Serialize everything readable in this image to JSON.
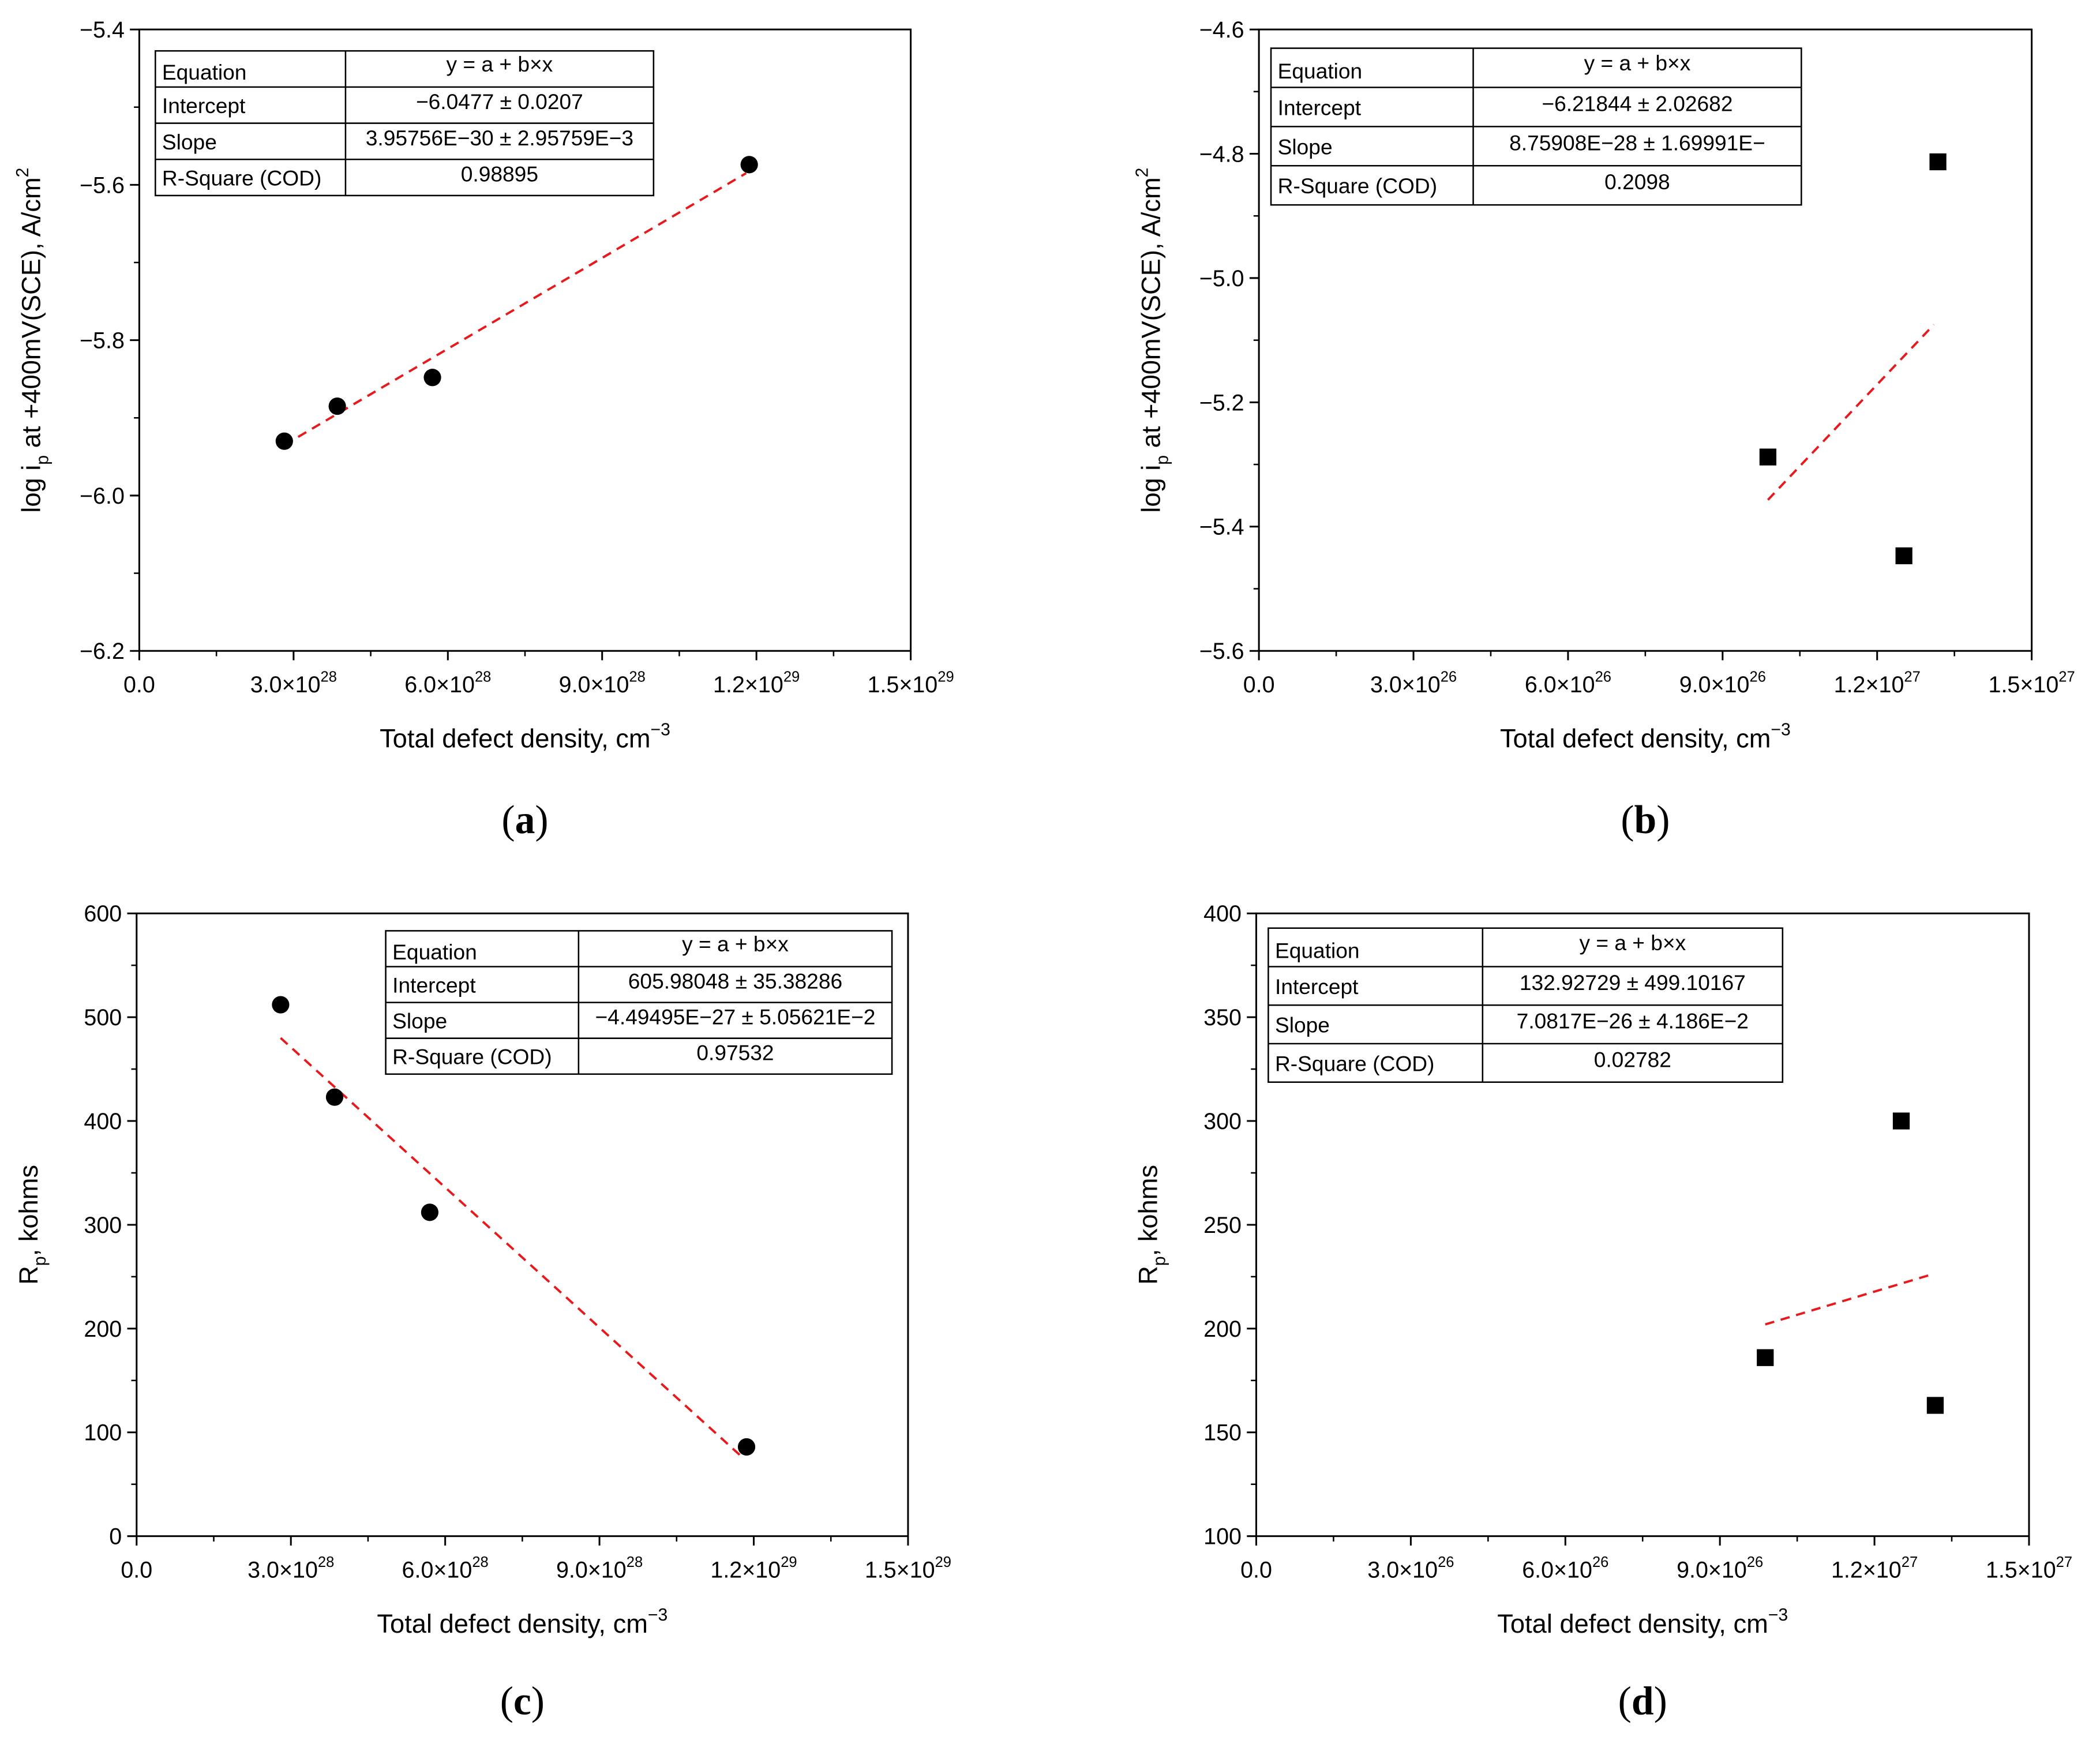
{
  "chart_data": [
    {
      "id": "a",
      "type": "scatter",
      "marker": "circle",
      "panel_label": "a",
      "xlabel": "Total defect density, cm",
      "xlabel_sup": "−3",
      "ylabel": "log i",
      "ylabel_sub": "p",
      "ylabel_mid": " at +400mV(SCE), A/cm",
      "ylabel_sup": "2",
      "xlim": [
        0,
        1.5e+29
      ],
      "ylim": [
        -6.2,
        -5.4
      ],
      "x_ticks": [
        {
          "value": 0,
          "label": "0.0",
          "sup": ""
        },
        {
          "value": 3e+28,
          "label": "3.0×10",
          "sup": "28"
        },
        {
          "value": 6e+28,
          "label": "6.0×10",
          "sup": "28"
        },
        {
          "value": 9e+28,
          "label": "9.0×10",
          "sup": "28"
        },
        {
          "value": 1.2e+29,
          "label": "1.2×10",
          "sup": "29"
        },
        {
          "value": 1.5e+29,
          "label": "1.5×10",
          "sup": "29"
        }
      ],
      "y_ticks": [
        {
          "value": -6.2,
          "label": "−6.2"
        },
        {
          "value": -6.0,
          "label": "−6.0"
        },
        {
          "value": -5.8,
          "label": "−5.8"
        },
        {
          "value": -5.6,
          "label": "−5.6"
        },
        {
          "value": -5.4,
          "label": "−5.4"
        }
      ],
      "points": [
        {
          "x": 2.82e+28,
          "y": -5.93
        },
        {
          "x": 3.85e+28,
          "y": -5.885
        },
        {
          "x": 5.7e+28,
          "y": -5.848
        },
        {
          "x": 1.186e+29,
          "y": -5.574
        }
      ],
      "fit": {
        "x0": 2.82e+28,
        "y0": -5.935,
        "x1": 1.18e+29,
        "y1": -5.585
      },
      "stats_position": "top-left",
      "stats": {
        "header": [
          "Equation",
          "y = a + b×x"
        ],
        "rows": [
          [
            "Intercept",
            "−6.0477 ± 0.0207"
          ],
          [
            "Slope",
            "3.95756E−30 ± 2.95759E−3"
          ],
          [
            "R-Square (COD)",
            "0.98895"
          ]
        ]
      }
    },
    {
      "id": "b",
      "type": "scatter",
      "marker": "square",
      "panel_label": "b",
      "xlabel": "Total defect density, cm",
      "xlabel_sup": "−3",
      "ylabel": "log i",
      "ylabel_sub": "p",
      "ylabel_mid": " at +400mV(SCE), A/cm",
      "ylabel_sup": "2",
      "xlim": [
        0,
        1.5e+27
      ],
      "ylim": [
        -5.6,
        -4.6
      ],
      "x_ticks": [
        {
          "value": 0,
          "label": "0.0",
          "sup": ""
        },
        {
          "value": 3e+26,
          "label": "3.0×10",
          "sup": "26"
        },
        {
          "value": 6e+26,
          "label": "6.0×10",
          "sup": "26"
        },
        {
          "value": 9e+26,
          "label": "9.0×10",
          "sup": "26"
        },
        {
          "value": 1.2e+27,
          "label": "1.2×10",
          "sup": "27"
        },
        {
          "value": 1.5e+27,
          "label": "1.5×10",
          "sup": "27"
        }
      ],
      "y_ticks": [
        {
          "value": -5.6,
          "label": "−5.6"
        },
        {
          "value": -5.4,
          "label": "−5.4"
        },
        {
          "value": -5.2,
          "label": "−5.2"
        },
        {
          "value": -5.0,
          "label": "−5.0"
        },
        {
          "value": -4.8,
          "label": "−4.8"
        },
        {
          "value": -4.6,
          "label": "−4.6"
        }
      ],
      "points": [
        {
          "x": 9.88e+26,
          "y": -5.288
        },
        {
          "x": 1.252e+27,
          "y": -5.447
        },
        {
          "x": 1.318e+27,
          "y": -4.813
        }
      ],
      "fit": {
        "x0": 9.88e+26,
        "y0": -5.357,
        "x1": 1.31e+27,
        "y1": -5.075
      },
      "stats_position": "top-left",
      "stats": {
        "header": [
          "Equation",
          "y = a + b×x"
        ],
        "rows": [
          [
            "Intercept",
            "−6.21844 ± 2.02682"
          ],
          [
            "Slope",
            "8.75908E−28 ± 1.69991E−"
          ],
          [
            "R-Square (COD)",
            "0.2098"
          ]
        ]
      }
    },
    {
      "id": "c",
      "type": "scatter",
      "marker": "circle",
      "panel_label": "c",
      "xlabel": "Total defect density, cm",
      "xlabel_sup": "−3",
      "ylabel": "R",
      "ylabel_sub": "p",
      "ylabel_mid": ", kohms",
      "ylabel_sup": "",
      "xlim": [
        0,
        1.5e+29
      ],
      "ylim": [
        0,
        600
      ],
      "x_ticks": [
        {
          "value": 0,
          "label": "0.0",
          "sup": ""
        },
        {
          "value": 3e+28,
          "label": "3.0×10",
          "sup": "28"
        },
        {
          "value": 6e+28,
          "label": "6.0×10",
          "sup": "28"
        },
        {
          "value": 9e+28,
          "label": "9.0×10",
          "sup": "28"
        },
        {
          "value": 1.2e+29,
          "label": "1.2×10",
          "sup": "29"
        },
        {
          "value": 1.5e+29,
          "label": "1.5×10",
          "sup": "29"
        }
      ],
      "y_ticks": [
        {
          "value": 0,
          "label": "0"
        },
        {
          "value": 100,
          "label": "100"
        },
        {
          "value": 200,
          "label": "200"
        },
        {
          "value": 300,
          "label": "300"
        },
        {
          "value": 400,
          "label": "400"
        },
        {
          "value": 500,
          "label": "500"
        },
        {
          "value": 600,
          "label": "600"
        }
      ],
      "points": [
        {
          "x": 2.8e+28,
          "y": 512
        },
        {
          "x": 3.85e+28,
          "y": 423
        },
        {
          "x": 5.7e+28,
          "y": 312
        },
        {
          "x": 1.186e+29,
          "y": 86
        }
      ],
      "fit": {
        "x0": 2.8e+28,
        "y0": 480,
        "x1": 1.18e+29,
        "y1": 75
      },
      "stats_position": "top-right",
      "stats": {
        "header": [
          "Equation",
          "y = a + b×x"
        ],
        "rows": [
          [
            "Intercept",
            "605.98048 ± 35.38286"
          ],
          [
            "Slope",
            "−4.49495E−27 ± 5.05621E−2"
          ],
          [
            "R-Square (COD)",
            "0.97532"
          ]
        ]
      }
    },
    {
      "id": "d",
      "type": "scatter",
      "marker": "square",
      "panel_label": "d",
      "xlabel": "Total defect density, cm",
      "xlabel_sup": "−3",
      "ylabel": "R",
      "ylabel_sub": "p",
      "ylabel_mid": ", kohms",
      "ylabel_sup": "",
      "xlim": [
        0,
        1.5e+27
      ],
      "ylim": [
        100,
        400
      ],
      "x_ticks": [
        {
          "value": 0,
          "label": "0.0",
          "sup": ""
        },
        {
          "value": 3e+26,
          "label": "3.0×10",
          "sup": "26"
        },
        {
          "value": 6e+26,
          "label": "6.0×10",
          "sup": "26"
        },
        {
          "value": 9e+26,
          "label": "9.0×10",
          "sup": "26"
        },
        {
          "value": 1.2e+27,
          "label": "1.2×10",
          "sup": "27"
        },
        {
          "value": 1.5e+27,
          "label": "1.5×10",
          "sup": "27"
        }
      ],
      "y_ticks": [
        {
          "value": 100,
          "label": "100"
        },
        {
          "value": 150,
          "label": "150"
        },
        {
          "value": 200,
          "label": "200"
        },
        {
          "value": 250,
          "label": "250"
        },
        {
          "value": 300,
          "label": "300"
        },
        {
          "value": 350,
          "label": "350"
        },
        {
          "value": 400,
          "label": "400"
        }
      ],
      "points": [
        {
          "x": 9.88e+26,
          "y": 186
        },
        {
          "x": 1.252e+27,
          "y": 300
        },
        {
          "x": 1.318e+27,
          "y": 163
        }
      ],
      "fit": {
        "x0": 9.88e+26,
        "y0": 202,
        "x1": 1.31e+27,
        "y1": 226
      },
      "stats_position": "top-left",
      "stats": {
        "header": [
          "Equation",
          "y = a + b×x"
        ],
        "rows": [
          [
            "Intercept",
            "132.92729 ± 499.10167"
          ],
          [
            "Slope",
            "7.0817E−26 ± 4.186E−2"
          ],
          [
            "R-Square (COD)",
            "0.02782"
          ]
        ]
      }
    }
  ],
  "colors": {
    "fit_line": "#e8191c",
    "marker": "#000000",
    "axis": "#000000"
  }
}
